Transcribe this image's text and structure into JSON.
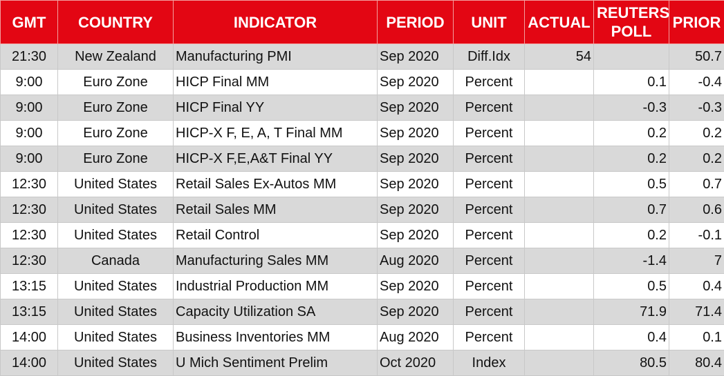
{
  "table": {
    "header": [
      "GMT",
      "COUNTRY",
      "INDICATOR",
      "PERIOD",
      "UNIT",
      "ACTUAL",
      "REUTERS POLL",
      "PRIOR"
    ],
    "rows": [
      [
        "21:30",
        "New Zealand",
        "Manufacturing PMI",
        "Sep 2020",
        "Diff.Idx",
        "54",
        null,
        "50.7"
      ],
      [
        "9:00",
        "Euro Zone",
        "HICP Final MM",
        "Sep 2020",
        "Percent",
        null,
        "0.1",
        "-0.4"
      ],
      [
        "9:00",
        "Euro Zone",
        "HICP Final YY",
        "Sep 2020",
        "Percent",
        null,
        "-0.3",
        "-0.3"
      ],
      [
        "9:00",
        "Euro Zone",
        "HICP-X F, E, A, T Final MM",
        "Sep 2020",
        "Percent",
        null,
        "0.2",
        "0.2"
      ],
      [
        "9:00",
        "Euro Zone",
        "HICP-X F,E,A&T Final YY",
        "Sep 2020",
        "Percent",
        null,
        "0.2",
        "0.2"
      ],
      [
        "12:30",
        "United States",
        "Retail Sales Ex-Autos MM",
        "Sep 2020",
        "Percent",
        null,
        "0.5",
        "0.7"
      ],
      [
        "12:30",
        "United States",
        "Retail Sales MM",
        "Sep 2020",
        "Percent",
        null,
        "0.7",
        "0.6"
      ],
      [
        "12:30",
        "United States",
        "Retail Control",
        "Sep 2020",
        "Percent",
        null,
        "0.2",
        "-0.1"
      ],
      [
        "12:30",
        "Canada",
        "Manufacturing Sales MM",
        "Aug 2020",
        "Percent",
        null,
        "-1.4",
        "7"
      ],
      [
        "13:15",
        "United States",
        "Industrial Production MM",
        "Sep 2020",
        "Percent",
        null,
        "0.5",
        "0.4"
      ],
      [
        "13:15",
        "United States",
        "Capacity Utilization SA",
        "Sep 2020",
        "Percent",
        null,
        "71.9",
        "71.4"
      ],
      [
        "14:00",
        "United States",
        "Business Inventories MM",
        "Aug 2020",
        "Percent",
        null,
        "0.4",
        "0.1"
      ],
      [
        "14:00",
        "United States",
        "U Mich Sentiment Prelim",
        "Oct 2020",
        "Index",
        null,
        "80.5",
        "80.4"
      ]
    ]
  }
}
